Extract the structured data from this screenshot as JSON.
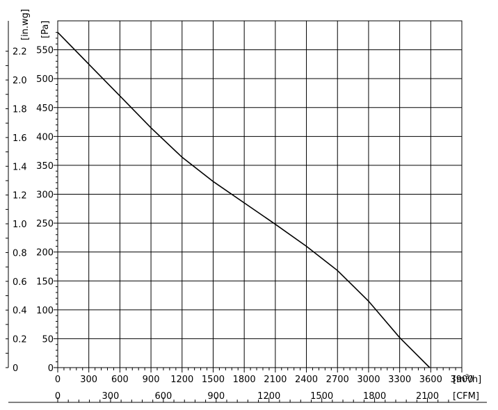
{
  "chart_data": {
    "type": "line",
    "title": "",
    "y_axis_left_label": "[in.wg]",
    "y_axis_right_label": "[Pa]",
    "x_axis_primary_unit_prefix": "[m",
    "x_axis_primary_unit_sup": "3",
    "x_axis_primary_unit_suffix": "/h]",
    "x_axis_secondary_unit": "[CFM]",
    "xlim_m3h": [
      0,
      3900
    ],
    "ylim_pa": [
      0,
      600
    ],
    "x_ticks_m3h": [
      0,
      300,
      600,
      900,
      1200,
      1500,
      1800,
      2100,
      2400,
      2700,
      3000,
      3300,
      3600,
      3900
    ],
    "x_tick_labels_m3h": [
      "0",
      "300",
      "600",
      "900",
      "1200",
      "1500",
      "1800",
      "2100",
      "2400",
      "2700",
      "3000",
      "3300",
      "3600",
      "3900"
    ],
    "x_ticks_cfm": [
      0,
      300,
      600,
      900,
      1200,
      1500,
      1800,
      2100
    ],
    "x_tick_labels_cfm": [
      "0",
      "300",
      "600",
      "900",
      "1200",
      "1500",
      "1800",
      "2100"
    ],
    "y_ticks_pa": [
      0,
      50,
      100,
      150,
      200,
      250,
      300,
      350,
      400,
      450,
      500,
      550
    ],
    "y_tick_labels_pa": [
      "0",
      "50",
      "100",
      "150",
      "200",
      "250",
      "300",
      "350",
      "400",
      "450",
      "500",
      "550"
    ],
    "y_tick_labels_inwg": [
      "0",
      "0.2",
      "0.4",
      "0.6",
      "0.8",
      "1.0",
      "1.2",
      "1.4",
      "1.6",
      "1.8",
      "2.0",
      "2.2"
    ],
    "grid": true,
    "series": [
      {
        "x": [
          0,
          300,
          600,
          900,
          1200,
          1500,
          1800,
          2100,
          2400,
          2700,
          3000,
          3300,
          3590
        ],
        "y": [
          580,
          525,
          470,
          415,
          364,
          322,
          285,
          248,
          210,
          168,
          115,
          52,
          0
        ]
      }
    ]
  }
}
